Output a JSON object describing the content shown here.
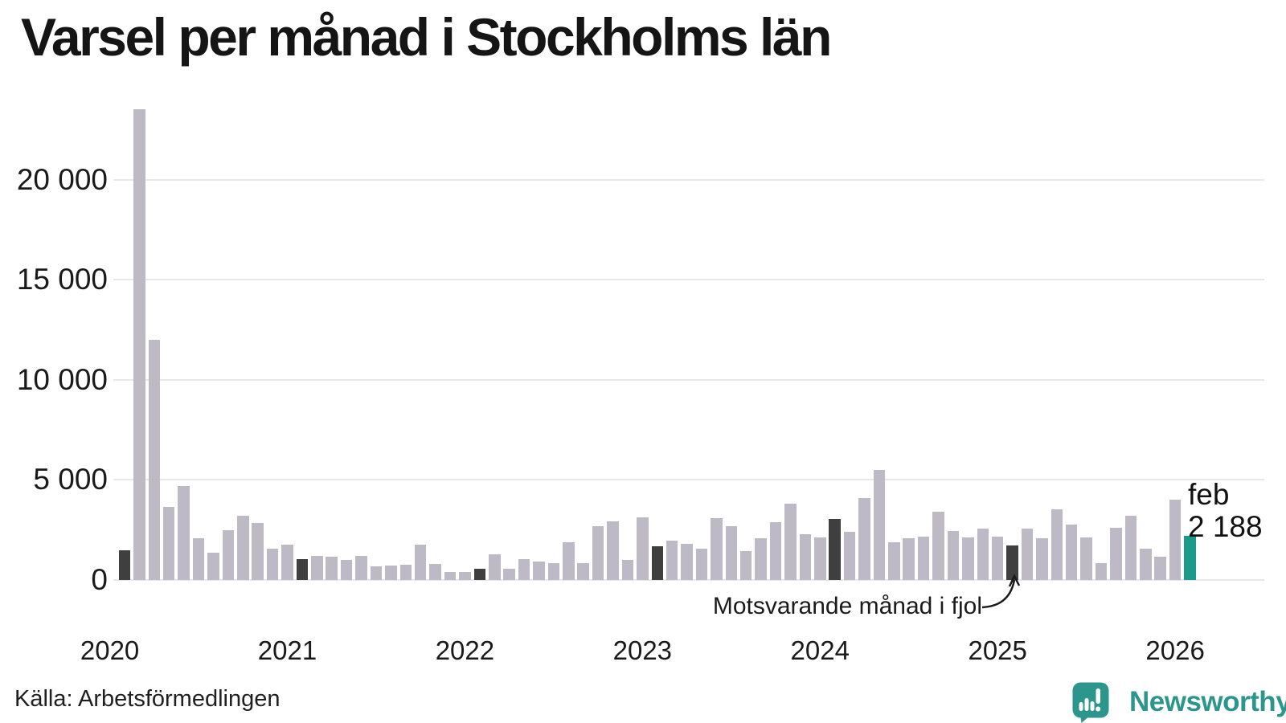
{
  "title": "Varsel per månad i Stockholms län",
  "source": "Källa: Arbetsförmedlingen",
  "annotation": "Motsvarande månad i fjol",
  "highlight_label": {
    "line1": "feb",
    "line2": "2 188"
  },
  "brand": {
    "name": "Newsworthy"
  },
  "colors": {
    "bar_normal": "#bdbac6",
    "bar_last_year": "#3f3f3f",
    "bar_current": "#1b9a8a",
    "grid": "#e8e7ed",
    "text": "#1a1a1a",
    "logo_teal": "#2d968c"
  },
  "chart_data": {
    "type": "bar",
    "title": "Varsel per månad i Stockholms län",
    "xlabel": "",
    "ylabel": "",
    "ylim": [
      0,
      23800
    ],
    "grid": "horizontal",
    "y_ticks": [
      0,
      5000,
      10000,
      15000,
      20000
    ],
    "y_tick_labels": [
      "0",
      "5 000",
      "10 000",
      "15 000",
      "20 000"
    ],
    "x_tick_labels": [
      "2020",
      "2021",
      "2022",
      "2023",
      "2024",
      "2025",
      "2026"
    ],
    "months": [
      "2020-02",
      "2020-03",
      "2020-04",
      "2020-05",
      "2020-06",
      "2020-07",
      "2020-08",
      "2020-09",
      "2020-10",
      "2020-11",
      "2020-12",
      "2021-01",
      "2021-02",
      "2021-03",
      "2021-04",
      "2021-05",
      "2021-06",
      "2021-07",
      "2021-08",
      "2021-09",
      "2021-10",
      "2021-11",
      "2021-12",
      "2022-01",
      "2022-02",
      "2022-03",
      "2022-04",
      "2022-05",
      "2022-06",
      "2022-07",
      "2022-08",
      "2022-09",
      "2022-10",
      "2022-11",
      "2022-12",
      "2023-01",
      "2023-02",
      "2023-03",
      "2023-04",
      "2023-05",
      "2023-06",
      "2023-07",
      "2023-08",
      "2023-09",
      "2023-10",
      "2023-11",
      "2023-12",
      "2024-01",
      "2024-02",
      "2024-03",
      "2024-04",
      "2024-05",
      "2024-06",
      "2024-07",
      "2024-08",
      "2024-09",
      "2024-10",
      "2024-11",
      "2024-12",
      "2025-01",
      "2025-02",
      "2025-03",
      "2025-04",
      "2025-05",
      "2025-06",
      "2025-07",
      "2025-08",
      "2025-09",
      "2025-10",
      "2025-11",
      "2025-12",
      "2026-01",
      "2026-02"
    ],
    "values": [
      1500,
      23500,
      12000,
      3650,
      4700,
      2100,
      1350,
      2500,
      3200,
      2850,
      1550,
      1750,
      1050,
      1200,
      1150,
      1000,
      1200,
      700,
      720,
      750,
      1770,
      800,
      400,
      410,
      550,
      1270,
      580,
      1050,
      930,
      840,
      1880,
      850,
      2690,
      2930,
      1020,
      3150,
      1680,
      1980,
      1810,
      1550,
      3100,
      2700,
      1440,
      2070,
      2890,
      3830,
      2300,
      2140,
      3030,
      2400,
      4080,
      5510,
      1880,
      2100,
      2170,
      3410,
      2430,
      2110,
      2560,
      2170,
      1720,
      2560,
      2070,
      3520,
      2780,
      2140,
      850,
      2620,
      3200,
      1550,
      1150,
      4000,
      2188
    ],
    "dark_months": [
      "2020-02",
      "2021-02",
      "2022-02",
      "2023-02",
      "2024-02",
      "2025-02"
    ],
    "dark_months_meaning": "Motsvarande månad i fjol",
    "current_month": "2026-02",
    "current_month_label": "feb",
    "current_month_value": 2188,
    "legend_position": "none"
  }
}
